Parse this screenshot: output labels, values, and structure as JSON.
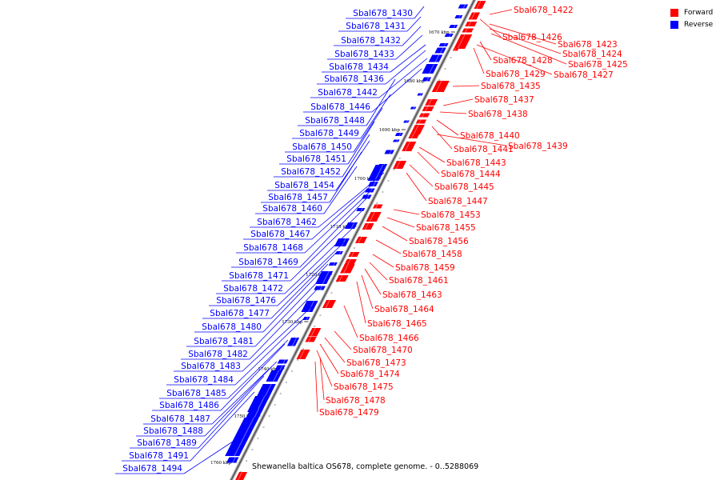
{
  "legend": {
    "forward_label": "Forward",
    "reverse_label": "Reverse",
    "forward_color": "#ff0000",
    "reverse_color": "#0000ff"
  },
  "caption": "Shewanella baltica OS678, complete genome. - 0..5288069",
  "axis": {
    "ticks": [
      "1670 kbp",
      "1680 kbp",
      "1690 kbp",
      "1700 kbp",
      "1710 kbp",
      "1720 kbp",
      "1730 kbp",
      "1740 kbp",
      "1750 kbp",
      "1760 kbp"
    ]
  },
  "genes": {
    "reverse": [
      "Sbal678_1430",
      "Sbal678_1431",
      "Sbal678_1432",
      "Sbal678_1433",
      "Sbal678_1434",
      "Sbal678_1436",
      "Sbal678_1442",
      "Sbal678_1446",
      "Sbal678_1448",
      "Sbal678_1449",
      "Sbal678_1450",
      "Sbal678_1451",
      "Sbal678_1452",
      "Sbal678_1454",
      "Sbal678_1457",
      "Sbal678_1460",
      "Sbal678_1462",
      "Sbal678_1467",
      "Sbal678_1468",
      "Sbal678_1469",
      "Sbal678_1471",
      "Sbal678_1472",
      "Sbal678_1476",
      "Sbal678_1477",
      "Sbal678_1480",
      "Sbal678_1481",
      "Sbal678_1482",
      "Sbal678_1483",
      "Sbal678_1484",
      "Sbal678_1485",
      "Sbal678_1486",
      "Sbal678_1487",
      "Sbal678_1488",
      "Sbal678_1489",
      "Sbal678_1491",
      "Sbal678_1494"
    ],
    "forward": [
      "Sbal678_1422",
      "Sbal678_1426",
      "Sbal678_1423",
      "Sbal678_1424",
      "Sbal678_1425",
      "Sbal678_1428",
      "Sbal678_1429",
      "Sbal678_1427",
      "Sbal678_1435",
      "Sbal678_1437",
      "Sbal678_1438",
      "Sbal678_1440",
      "Sbal678_1441",
      "Sbal678_1439",
      "Sbal678_1443",
      "Sbal678_1444",
      "Sbal678_1445",
      "Sbal678_1447",
      "Sbal678_1453",
      "Sbal678_1455",
      "Sbal678_1456",
      "Sbal678_1458",
      "Sbal678_1459",
      "Sbal678_1461",
      "Sbal678_1463",
      "Sbal678_1464",
      "Sbal678_1465",
      "Sbal678_1466",
      "Sbal678_1470",
      "Sbal678_1473",
      "Sbal678_1474",
      "Sbal678_1475",
      "Sbal678_1478",
      "Sbal678_1479"
    ]
  }
}
